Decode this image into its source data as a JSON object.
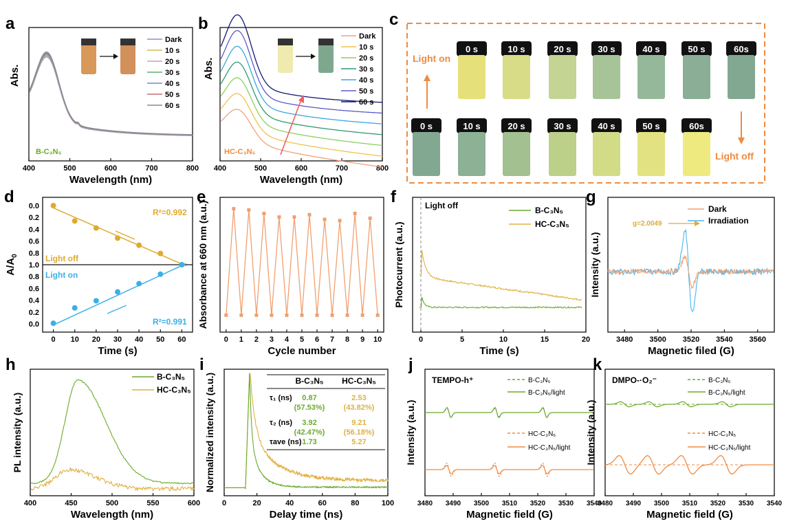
{
  "figure": {
    "panel_letters": [
      "a",
      "b",
      "c",
      "d",
      "e",
      "f",
      "g",
      "h",
      "i",
      "j",
      "k"
    ]
  },
  "chart_data": [
    {
      "id": "a",
      "type": "line",
      "xlabel": "Wavelength (nm)",
      "ylabel": "Abs.",
      "xlim": [
        400,
        800
      ],
      "ylim": [
        0,
        1
      ],
      "xticks": [
        400,
        500,
        600,
        700,
        800
      ],
      "sample": "B-C₃N₅",
      "legend": [
        "Dark",
        "10 s",
        "20 s",
        "30 s",
        "40 s",
        "50 s",
        "60 s"
      ],
      "colors": [
        "#8c8cd9",
        "#d4b84a",
        "#c79bc9",
        "#5fae6a",
        "#6c8fd8",
        "#c86a7a",
        "#8a8a9a"
      ],
      "peak_nm": 445
    },
    {
      "id": "b",
      "type": "line",
      "xlabel": "Wavelength (nm)",
      "ylabel": "Abs.",
      "xlim": [
        400,
        800
      ],
      "ylim": [
        0,
        1
      ],
      "xticks": [
        400,
        500,
        600,
        700,
        800
      ],
      "sample": "HC-C₃N₅",
      "legend": [
        "Dark",
        "10 s",
        "20 s",
        "30 s",
        "40 s",
        "50 s",
        "60 s"
      ],
      "colors": [
        "#f0a07a",
        "#f0c24a",
        "#8ccf5a",
        "#2e9a6e",
        "#3aa6e0",
        "#5a5ac8",
        "#141870"
      ],
      "peak_nm": 445
    },
    {
      "id": "c",
      "type": "photo-grid",
      "top_label": "Light on",
      "bottom_label": "Light off",
      "top_row": [
        "0 s",
        "10 s",
        "20 s",
        "30 s",
        "40 s",
        "50 s",
        "60s"
      ],
      "bottom_row": [
        "0 s",
        "10 s",
        "20 s",
        "30 s",
        "40 s",
        "50 s",
        "60s"
      ],
      "top_colors": [
        "#e6e07a",
        "#d8dc86",
        "#c3d493",
        "#a6c498",
        "#96b89a",
        "#8aae96",
        "#82a892"
      ],
      "bottom_colors": [
        "#82a892",
        "#8cb194",
        "#a2c090",
        "#bcd08a",
        "#d2dc86",
        "#e2e282",
        "#eeea80"
      ]
    },
    {
      "id": "d",
      "type": "scatter",
      "xlabel": "Time (s)",
      "ylabel": "A/A",
      "ylabel_sub": "0",
      "xlim": [
        -5,
        65
      ],
      "xticks": [
        0,
        10,
        20,
        30,
        40,
        50,
        60
      ],
      "yticks_top": [
        "0.0",
        "0.2",
        "0.4",
        "0.6",
        "0.8",
        "1.0"
      ],
      "yticks_bottom": [
        "0.8",
        "0.6",
        "0.4",
        "0.2",
        "0.0"
      ],
      "series": [
        {
          "name": "Light off",
          "r2": "R²=0.992",
          "color": "#e0aa30",
          "x": [
            0,
            10,
            20,
            30,
            40,
            50,
            60
          ],
          "y": [
            0.0,
            0.26,
            0.38,
            0.55,
            0.67,
            0.81,
            1.0
          ]
        },
        {
          "name": "Light on",
          "r2": "R²=0.991",
          "color": "#3ab0e8",
          "x": [
            0,
            10,
            20,
            30,
            40,
            50,
            60
          ],
          "y": [
            0.01,
            0.27,
            0.39,
            0.54,
            0.68,
            0.84,
            1.0
          ]
        }
      ]
    },
    {
      "id": "e",
      "type": "line",
      "xlabel": "Cycle number",
      "ylabel": "Absorbance at 660 nm (a.u.)",
      "xlim": [
        -0.4,
        10.4
      ],
      "xticks": [
        0,
        1,
        2,
        3,
        4,
        5,
        6,
        7,
        8,
        9,
        10
      ],
      "color": "#f0a070",
      "x": [
        0,
        0.5,
        1,
        1.5,
        2,
        2.5,
        3,
        3.5,
        4,
        4.5,
        5,
        5.5,
        6,
        6.5,
        7,
        7.5,
        8,
        8.5,
        9,
        9.5,
        10
      ],
      "y": [
        0.05,
        0.95,
        0.05,
        0.94,
        0.05,
        0.91,
        0.05,
        0.88,
        0.05,
        0.88,
        0.05,
        0.9,
        0.05,
        0.86,
        0.05,
        0.85,
        0.05,
        0.91,
        0.05,
        0.87,
        0.05
      ]
    },
    {
      "id": "f",
      "type": "line",
      "xlabel": "Time (s)",
      "ylabel": "Photocurrent (a.u.)",
      "xlim": [
        -1,
        20
      ],
      "xticks": [
        0,
        5,
        10,
        15,
        20
      ],
      "annotation": "Light off",
      "legend": [
        "B-C₃N₅",
        "HC-C₃N₅"
      ],
      "colors": [
        "#6aaa2a",
        "#e0b040"
      ]
    },
    {
      "id": "g",
      "type": "line",
      "xlabel": "Magnetic filed (G)",
      "ylabel": "Intensity (a.u.)",
      "xlim": [
        3470,
        3570
      ],
      "xticks": [
        3480,
        3500,
        3520,
        3540,
        3560
      ],
      "annotation": "g=2.0049",
      "legend": [
        "Dark",
        "Irradiation"
      ],
      "colors": [
        "#f0a070",
        "#4ab4ee"
      ]
    },
    {
      "id": "h",
      "type": "line",
      "xlabel": "Wavelength (nm)",
      "ylabel": "PL intensity (a.u.)",
      "xlim": [
        400,
        600
      ],
      "xticks": [
        400,
        450,
        500,
        550,
        600
      ],
      "legend": [
        "B-C₃N₅",
        "HC-C₃N₅"
      ],
      "colors": [
        "#6aaa2a",
        "#e0b040"
      ],
      "peak_nm": 458
    },
    {
      "id": "i",
      "type": "line",
      "xlabel": "Delay time (ns)",
      "ylabel": "Normalized intensity (a.u.)",
      "xlim": [
        0,
        100
      ],
      "xticks": [
        0,
        20,
        40,
        60,
        80,
        100
      ],
      "legend": [
        "B-C₃N₅",
        "HC-C₃N₅"
      ],
      "colors": [
        "#6aaa2a",
        "#e0b040"
      ],
      "table": {
        "headers": [
          "",
          "B-C₃N₅",
          "HC-C₃N₅"
        ],
        "rows": [
          {
            "label": "τ₁ (ns)",
            "b": "0.87",
            "b2": "(57.53%)",
            "hc": "2.53",
            "hc2": "(43.82%)"
          },
          {
            "label": "τ₂ (ns)",
            "b": "3.92",
            "b2": "(42.47%)",
            "hc": "9.21",
            "hc2": "(56.18%)"
          },
          {
            "label": "τave (ns)",
            "b": "1.73",
            "b2": "",
            "hc": "5.27",
            "hc2": ""
          }
        ]
      }
    },
    {
      "id": "j",
      "type": "line",
      "xlabel": "Magnetic field (G)",
      "ylabel": "Intensity (a.u.)",
      "xlim": [
        3480,
        3540
      ],
      "xticks": [
        3480,
        3490,
        3500,
        3510,
        3520,
        3530,
        3540
      ],
      "title": "TEMPO-h⁺",
      "legend": [
        "B-C₃N₅",
        "B-C₃N₅/light",
        "HC-C₃N₅",
        "HC-C₃N₅/light"
      ],
      "colors": [
        "#6aaa2a",
        "#6aaa2a",
        "#f08a40",
        "#f08a40"
      ]
    },
    {
      "id": "k",
      "type": "line",
      "xlabel": "Magnetic field (G)",
      "ylabel": "Intensity (a.u.)",
      "xlim": [
        3480,
        3540
      ],
      "xticks": [
        3480,
        3490,
        3500,
        3510,
        3520,
        3530,
        3540
      ],
      "title": "DMPO-·O₂⁻",
      "legend": [
        "B-C₃N₅",
        "B-C₃N₅/light",
        "HC-C₃N₅",
        "HC-C₃N₅/light"
      ],
      "colors": [
        "#6aaa2a",
        "#6aaa2a",
        "#f08a40",
        "#f08a40"
      ]
    }
  ]
}
